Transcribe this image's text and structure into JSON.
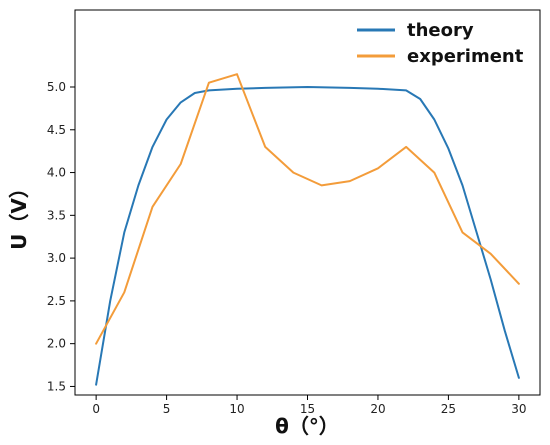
{
  "chart_data": {
    "type": "line",
    "xlabel": "θ（°）",
    "ylabel": "U（V）",
    "xlim": [
      -1.5,
      31.5
    ],
    "ylim": [
      1.4,
      5.9
    ],
    "x_ticks": [
      0,
      5,
      10,
      15,
      20,
      25,
      30
    ],
    "y_ticks": [
      1.5,
      2.0,
      2.5,
      3.0,
      3.5,
      4.0,
      4.5,
      5.0
    ],
    "grid": false,
    "legend_position": "top-right",
    "series": [
      {
        "name": "theory",
        "color": "#2878b5",
        "x": [
          0,
          1,
          2,
          3,
          4,
          5,
          6,
          7,
          8,
          10,
          12,
          15,
          18,
          20,
          22,
          23,
          24,
          25,
          26,
          27,
          28,
          29,
          30
        ],
        "values": [
          1.52,
          2.5,
          3.3,
          3.85,
          4.3,
          4.62,
          4.82,
          4.93,
          4.96,
          4.98,
          4.99,
          5.0,
          4.99,
          4.98,
          4.96,
          4.86,
          4.62,
          4.28,
          3.85,
          3.3,
          2.75,
          2.15,
          1.6
        ]
      },
      {
        "name": "experiment",
        "color": "#f39c3a",
        "x": [
          0,
          2,
          4,
          6,
          8,
          10,
          12,
          14,
          16,
          18,
          20,
          22,
          24,
          26,
          28,
          30
        ],
        "values": [
          2.0,
          2.6,
          3.6,
          4.1,
          5.05,
          5.15,
          4.3,
          4.0,
          3.85,
          3.9,
          4.05,
          4.3,
          4.0,
          3.3,
          3.05,
          2.7
        ]
      }
    ]
  }
}
